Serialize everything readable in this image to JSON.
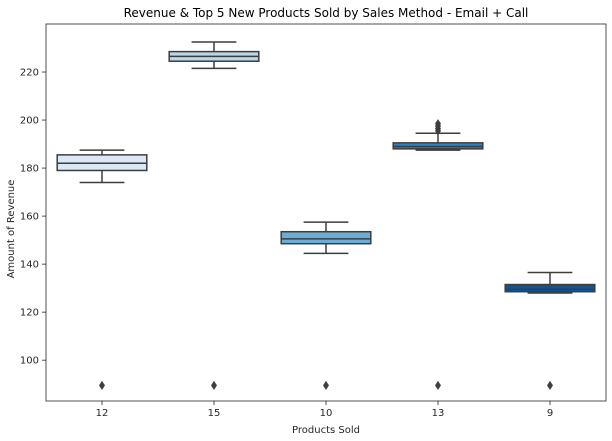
{
  "chart_data": {
    "type": "box",
    "title": "Revenue & Top 5 New Products Sold by Sales Method - Email + Call",
    "xlabel": "Products Sold",
    "ylabel": "Amount of Revenue",
    "ylim": [
      83,
      240
    ],
    "yticks": [
      100,
      120,
      140,
      160,
      180,
      200,
      220
    ],
    "grid": false,
    "categories": [
      "12",
      "15",
      "10",
      "13",
      "9"
    ],
    "boxes": [
      {
        "category": "12",
        "whisker_low": 174,
        "q1": 179,
        "median": 182,
        "q3": 185.5,
        "whisker_high": 187.5,
        "outliers": [
          89.5
        ],
        "color": "#dbe9f6"
      },
      {
        "category": "15",
        "whisker_low": 221.5,
        "q1": 224.5,
        "median": 226.5,
        "q3": 228.5,
        "whisker_high": 232.5,
        "outliers": [
          89.5
        ],
        "color": "#bad6eb"
      },
      {
        "category": "10",
        "whisker_low": 144.5,
        "q1": 148.5,
        "median": 150.5,
        "q3": 153.5,
        "whisker_high": 157.5,
        "outliers": [
          89.5
        ],
        "color": "#6aaed6"
      },
      {
        "category": "13",
        "whisker_low": 187.5,
        "q1": 188,
        "median": 189,
        "q3": 190.5,
        "whisker_high": 194.5,
        "outliers": [
          89.5,
          195.5,
          196.5,
          197.5,
          198.5
        ],
        "color": "#3282be"
      },
      {
        "category": "9",
        "whisker_low": 128,
        "q1": 128.5,
        "median": 129.5,
        "q3": 131.5,
        "whisker_high": 136.5,
        "outliers": [
          89.5
        ],
        "color": "#0b559f"
      }
    ]
  }
}
